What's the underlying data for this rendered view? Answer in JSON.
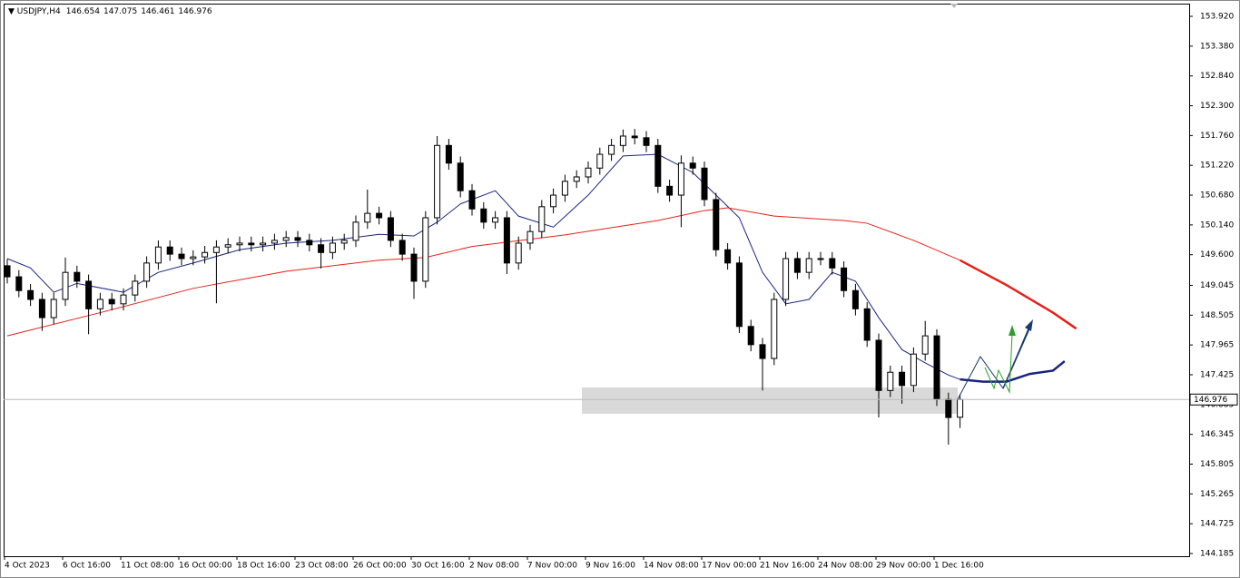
{
  "chart_data": {
    "type": "candlestick",
    "symbol": "USDJPY,H4",
    "categories": [
      "4 Oct 2023",
      null,
      null,
      null,
      null,
      "6 Oct 16:00",
      null,
      null,
      null,
      null,
      "11 Oct 08:00",
      null,
      null,
      null,
      null,
      "16 Oct 00:00",
      null,
      null,
      null,
      null,
      "18 Oct 16:00",
      null,
      null,
      null,
      null,
      "23 Oct 08:00",
      null,
      null,
      null,
      null,
      "26 Oct 00:00",
      null,
      null,
      null,
      null,
      "30 Oct 16:00",
      null,
      null,
      null,
      null,
      "2 Nov 08:00",
      null,
      null,
      null,
      null,
      "7 Nov 00:00",
      null,
      null,
      null,
      null,
      "9 Nov 16:00",
      null,
      null,
      null,
      null,
      "14 Nov 08:00",
      null,
      null,
      null,
      null,
      "17 Nov 00:00",
      null,
      null,
      null,
      null,
      "21 Nov 16:00",
      null,
      null,
      null,
      null,
      "24 Nov 08:00",
      null,
      null,
      null,
      null,
      "29 Nov 00:00",
      null,
      null,
      null,
      null,
      "1 Dec 16:00",
      null,
      null
    ],
    "open": [
      149.4,
      149.2,
      148.95,
      148.79,
      148.46,
      148.79,
      149.28,
      149.12,
      148.62,
      148.79,
      148.71,
      148.87,
      149.12,
      149.45,
      149.74,
      149.61,
      149.53,
      149.56,
      149.64,
      149.74,
      149.78,
      149.81,
      149.78,
      149.81,
      149.86,
      149.91,
      149.86,
      149.78,
      149.64,
      149.81,
      149.86,
      150.19,
      150.35,
      150.27,
      149.86,
      149.61,
      149.12,
      150.27,
      151.58,
      151.26,
      150.76,
      150.43,
      150.19,
      150.27,
      149.45,
      149.81,
      150.02,
      150.47,
      150.68,
      150.93,
      151.01,
      151.17,
      151.42,
      151.58,
      151.75,
      151.72,
      151.58,
      150.84,
      150.68,
      151.26,
      151.17,
      150.6,
      149.69,
      149.45,
      148.3,
      147.97,
      147.72,
      148.79,
      149.53,
      149.28,
      149.53,
      149.53,
      149.36,
      148.95,
      148.62,
      148.05,
      147.14,
      147.47,
      147.23,
      147.8,
      148.13,
      146.98,
      146.654
    ],
    "high": [
      149.52,
      149.32,
      149.07,
      148.91,
      148.91,
      149.55,
      149.4,
      149.24,
      148.91,
      148.91,
      148.99,
      149.24,
      149.57,
      149.86,
      149.86,
      149.73,
      149.68,
      149.76,
      149.86,
      149.9,
      149.93,
      149.93,
      149.93,
      149.98,
      150.03,
      150.03,
      149.98,
      149.9,
      149.93,
      149.98,
      150.31,
      150.78,
      150.47,
      150.39,
      149.98,
      149.73,
      150.39,
      151.75,
      151.7,
      151.38,
      150.88,
      150.55,
      150.39,
      150.39,
      149.93,
      150.14,
      150.59,
      150.8,
      151.05,
      151.13,
      151.29,
      151.54,
      151.7,
      151.87,
      151.88,
      151.84,
      151.7,
      150.96,
      151.4,
      151.38,
      151.29,
      150.72,
      149.81,
      149.57,
      148.42,
      148.09,
      148.91,
      149.65,
      149.65,
      149.65,
      149.65,
      149.65,
      149.48,
      149.07,
      148.74,
      148.17,
      147.59,
      147.59,
      147.92,
      148.4,
      148.25,
      147.1,
      147.075
    ],
    "low": [
      149.08,
      148.83,
      148.67,
      148.22,
      148.34,
      148.67,
      149.0,
      148.16,
      148.5,
      148.59,
      148.59,
      148.75,
      149.0,
      149.33,
      149.49,
      149.41,
      149.41,
      149.44,
      148.72,
      149.62,
      149.66,
      149.66,
      149.66,
      149.69,
      149.74,
      149.74,
      149.66,
      149.35,
      149.52,
      149.69,
      149.74,
      150.07,
      150.15,
      149.74,
      149.49,
      148.8,
      149.0,
      150.15,
      151.14,
      150.64,
      150.31,
      150.07,
      150.07,
      149.25,
      149.33,
      149.69,
      149.9,
      150.35,
      150.56,
      150.81,
      150.89,
      151.05,
      151.3,
      151.46,
      151.6,
      151.46,
      150.72,
      150.56,
      150.1,
      151.05,
      150.48,
      149.57,
      149.33,
      148.18,
      147.85,
      147.14,
      147.6,
      148.67,
      149.16,
      149.16,
      149.41,
      149.24,
      148.83,
      148.5,
      147.93,
      146.65,
      147.02,
      146.9,
      147.11,
      147.68,
      146.86,
      146.16,
      146.461
    ],
    "close": [
      149.2,
      148.95,
      148.79,
      148.46,
      148.79,
      149.28,
      149.12,
      148.62,
      148.79,
      148.71,
      148.87,
      149.12,
      149.45,
      149.74,
      149.61,
      149.53,
      149.56,
      149.64,
      149.74,
      149.78,
      149.81,
      149.78,
      149.81,
      149.86,
      149.91,
      149.86,
      149.78,
      149.64,
      149.81,
      149.86,
      150.19,
      150.35,
      150.27,
      149.86,
      149.61,
      149.12,
      150.27,
      151.58,
      151.26,
      150.76,
      150.43,
      150.19,
      150.27,
      149.45,
      149.81,
      150.02,
      150.47,
      150.68,
      150.93,
      151.01,
      151.17,
      151.42,
      151.58,
      151.75,
      151.72,
      151.58,
      150.84,
      150.68,
      151.26,
      151.17,
      150.6,
      149.69,
      149.45,
      148.3,
      147.97,
      147.72,
      148.79,
      149.53,
      149.28,
      149.53,
      149.53,
      149.36,
      148.95,
      148.62,
      148.05,
      147.14,
      147.47,
      147.23,
      147.8,
      148.13,
      146.98,
      146.65,
      146.976
    ],
    "lines": [
      {
        "color": "#1a237e",
        "x": [
          0,
          2,
          4,
          6,
          10,
          13,
          16,
          20,
          24,
          28,
          32,
          35,
          37,
          39,
          42,
          44,
          47,
          50,
          53,
          56,
          59,
          61,
          63,
          65,
          67,
          69,
          71,
          73,
          75,
          77,
          79,
          81,
          82,
          84,
          86,
          88,
          90,
          91
        ],
        "values": [
          149.53,
          149.36,
          148.92,
          149.08,
          148.92,
          149.28,
          149.45,
          149.69,
          149.81,
          149.86,
          149.97,
          149.94,
          150.19,
          150.52,
          150.76,
          150.3,
          150.1,
          150.68,
          151.39,
          151.42,
          151.09,
          150.68,
          150.27,
          149.28,
          148.71,
          148.79,
          149.28,
          149.12,
          148.46,
          147.88,
          147.64,
          147.42,
          147.34,
          147.3,
          147.3,
          147.44,
          147.5,
          147.67
        ]
      },
      {
        "color": "#e8201a",
        "x": [
          0,
          8,
          16,
          24,
          32,
          36,
          40,
          48,
          56,
          60,
          62,
          66,
          72,
          74,
          78,
          82,
          86,
          90,
          92
        ],
        "values": [
          148.13,
          148.55,
          148.99,
          149.3,
          149.5,
          149.55,
          149.75,
          149.96,
          150.22,
          150.4,
          150.45,
          150.3,
          150.22,
          150.17,
          149.86,
          149.5,
          149.05,
          148.55,
          148.26
        ]
      }
    ],
    "ylim": [
      144.136,
      154.134
    ],
    "yticks": [
      {
        "value": 153.92,
        "label": "153.920"
      },
      {
        "value": 153.38,
        "label": "153.380"
      },
      {
        "value": 152.84,
        "label": "152.840"
      },
      {
        "value": 152.3,
        "label": "152.300"
      },
      {
        "value": 151.76,
        "label": "151.760"
      },
      {
        "value": 151.22,
        "label": "151.220"
      },
      {
        "value": 150.68,
        "label": "150.680"
      },
      {
        "value": 150.14,
        "label": "150.140"
      },
      {
        "value": 149.6,
        "label": "149.600"
      },
      149.045,
      148.505,
      147.965,
      147.425,
      146.885,
      146.345,
      145.805,
      145.265,
      144.725,
      144.185
    ]
  }
}
